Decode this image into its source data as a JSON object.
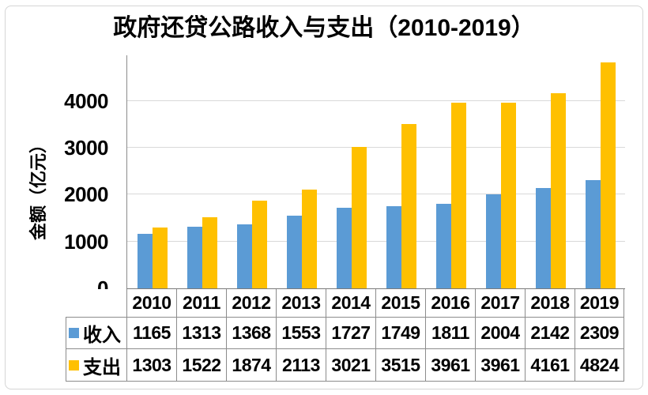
{
  "chart_data": {
    "type": "bar",
    "title": "政府还贷公路收入与支出（2010-2019）",
    "ylabel": "金额（亿元）",
    "xlabel": "",
    "categories": [
      "2010",
      "2011",
      "2012",
      "2013",
      "2014",
      "2015",
      "2016",
      "2017",
      "2018",
      "2019"
    ],
    "series": [
      {
        "id": "revenue",
        "name": "收入",
        "color": "#5B9BD5",
        "values": [
          1165,
          1313,
          1368,
          1553,
          1727,
          1749,
          1811,
          2004,
          2142,
          2309
        ]
      },
      {
        "id": "expense",
        "name": "支出",
        "color": "#FFC000",
        "values": [
          1303,
          1522,
          1874,
          2113,
          3021,
          3515,
          3961,
          3961,
          4161,
          4824
        ]
      }
    ],
    "y_ticks": [
      0,
      1000,
      2000,
      3000,
      4000
    ],
    "ylim": [
      0,
      4975
    ],
    "grid": true,
    "legend_position": "data-table-left",
    "data_table_shown": true
  },
  "colors": {
    "revenue_bar": "#5B9BD5",
    "expense_bar": "#FFC000",
    "gridline": "#d9d9d9",
    "table_border": "#8c8c8c",
    "frame_border": "#d5d5d5"
  }
}
